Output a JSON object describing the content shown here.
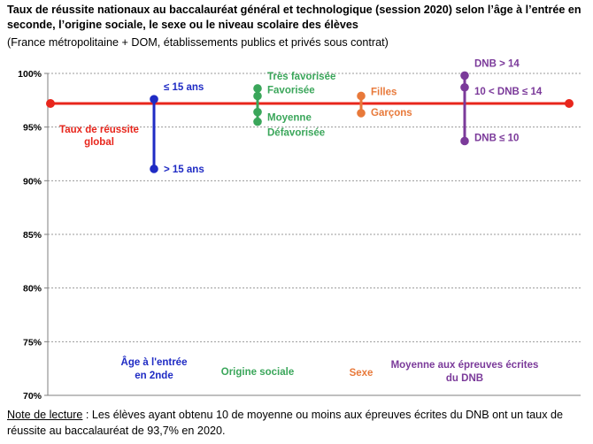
{
  "title": "Taux de réussite nationaux au baccalauréat général et technologique (session 2020) selon l’âge à l’entrée en seconde, l’origine sociale, le sexe ou le niveau scolaire des élèves",
  "subtitle": "(France métropolitaine + DOM, établissements publics et privés sous contrat)",
  "note": {
    "label": "Note de lecture",
    "text": " : Les élèves ayant obtenu 10 de moyenne ou moins aux épreuves écrites du DNB ont un taux de réussite au baccalauréat de 93,7% en 2020."
  },
  "colors": {
    "global": "#e8261c",
    "age": "#1f2bc4",
    "social": "#3aa65a",
    "sexe": "#e8793a",
    "dnb": "#7b3a9a",
    "grid": "#9a9a9a",
    "axis": "#7f7f7f"
  },
  "chart_data": {
    "type": "scatter",
    "ylim": [
      70,
      100
    ],
    "yticks": [
      70,
      75,
      80,
      85,
      90,
      95,
      100
    ],
    "ytick_labels": [
      "70%",
      "75%",
      "80%",
      "85%",
      "90%",
      "95%",
      "100%"
    ],
    "grid": true,
    "global": {
      "label": "Taux de réussite global",
      "value": 97.2
    },
    "groups": [
      {
        "name": "Âge à l'entrée en 2nde",
        "color_key": "age",
        "points": [
          {
            "label": "≤ 15 ans",
            "value": 97.6
          },
          {
            "label": "> 15 ans",
            "value": 91.1
          }
        ]
      },
      {
        "name": "Origine sociale",
        "color_key": "social",
        "points": [
          {
            "label": "Très favorisée",
            "value": 98.6
          },
          {
            "label": "Favorisée",
            "value": 97.9
          },
          {
            "label": "Moyenne",
            "value": 96.4
          },
          {
            "label": "Défavorisée",
            "value": 95.5
          }
        ]
      },
      {
        "name": "Sexe",
        "color_key": "sexe",
        "points": [
          {
            "label": "Filles",
            "value": 97.9
          },
          {
            "label": "Garçons",
            "value": 96.3
          }
        ]
      },
      {
        "name": "Moyenne aux épreuves écrites du DNB",
        "color_key": "dnb",
        "points": [
          {
            "label": "DNB > 14",
            "value": 99.8
          },
          {
            "label": "10 < DNB ≤ 14",
            "value": 98.7
          },
          {
            "label": "DNB ≤ 10",
            "value": 93.7
          }
        ]
      }
    ]
  }
}
